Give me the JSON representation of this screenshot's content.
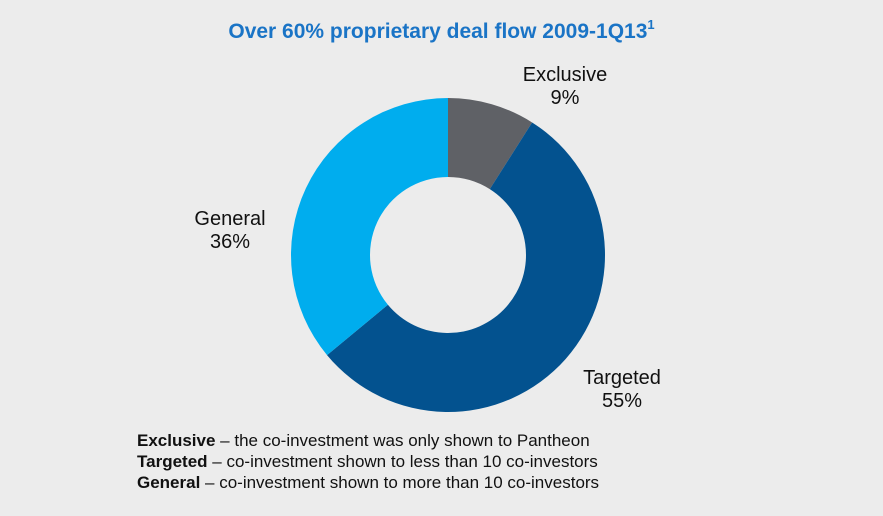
{
  "title": {
    "text": "Over 60% proprietary deal flow 2009-1Q13",
    "superscript": "1"
  },
  "chart_data": {
    "type": "pie",
    "donut": true,
    "title": "Over 60% proprietary deal flow 2009-1Q13",
    "categories": [
      "Exclusive",
      "Targeted",
      "General"
    ],
    "values": [
      9,
      55,
      36
    ],
    "value_labels": [
      "9%",
      "55%",
      "36%"
    ],
    "colors": [
      "#5f6166",
      "#03528f",
      "#00adee"
    ]
  },
  "slice_labels": [
    {
      "name": "Exclusive",
      "value": "9%"
    },
    {
      "name": "Targeted",
      "value": "55%"
    },
    {
      "name": "General",
      "value": "36%"
    }
  ],
  "footnotes": [
    {
      "term": "Exclusive",
      "text": " – the co-investment was only shown to Pantheon"
    },
    {
      "term": "Targeted",
      "text": " – co-investment shown to less than 10 co-investors"
    },
    {
      "term": "General",
      "text": " – co-investment shown to more than 10 co-investors"
    }
  ]
}
